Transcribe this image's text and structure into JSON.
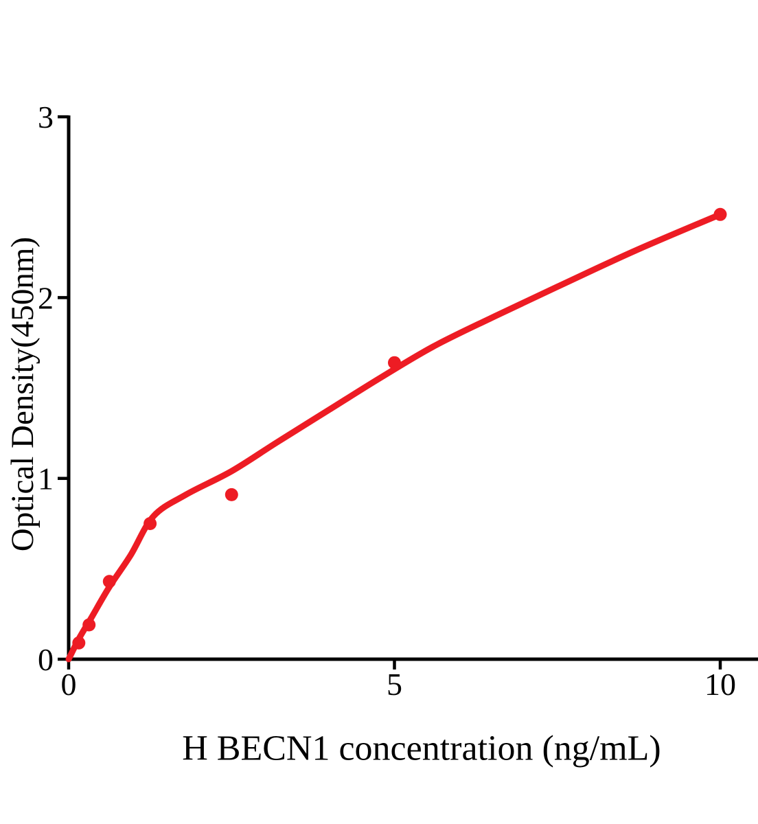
{
  "chart_data": {
    "type": "scatter",
    "title": "",
    "xlabel": "H BECN1 concentration (ng/mL)",
    "ylabel": "Optical Density(450nm)",
    "xlim": [
      0,
      10.6
    ],
    "ylim": [
      0,
      3
    ],
    "x_ticks": [
      0,
      5,
      10
    ],
    "y_ticks": [
      0,
      1,
      2,
      3
    ],
    "grid": false,
    "legend": "none",
    "colors": {
      "points": "#ED1C24",
      "curve": "#ED1C24",
      "axis": "#000000"
    },
    "series": [
      {
        "name": "standard-points",
        "type": "scatter",
        "points": [
          [
            0.156,
            0.09
          ],
          [
            0.3125,
            0.19
          ],
          [
            0.625,
            0.43
          ],
          [
            1.25,
            0.75
          ],
          [
            2.5,
            0.91
          ],
          [
            5,
            1.64
          ],
          [
            10,
            2.46
          ]
        ]
      },
      {
        "name": "fit-curve",
        "type": "line",
        "points": [
          [
            0,
            0
          ],
          [
            0.16,
            0.115
          ],
          [
            0.35,
            0.23
          ],
          [
            0.625,
            0.4
          ],
          [
            0.95,
            0.575
          ],
          [
            1.3,
            0.79
          ],
          [
            1.8,
            0.91
          ],
          [
            2.5,
            1.04
          ],
          [
            3.2,
            1.2
          ],
          [
            4.0,
            1.38
          ],
          [
            4.8,
            1.56
          ],
          [
            5.6,
            1.73
          ],
          [
            6.5,
            1.89
          ],
          [
            7.5,
            2.06
          ],
          [
            8.7,
            2.26
          ],
          [
            10,
            2.46
          ]
        ]
      }
    ]
  }
}
